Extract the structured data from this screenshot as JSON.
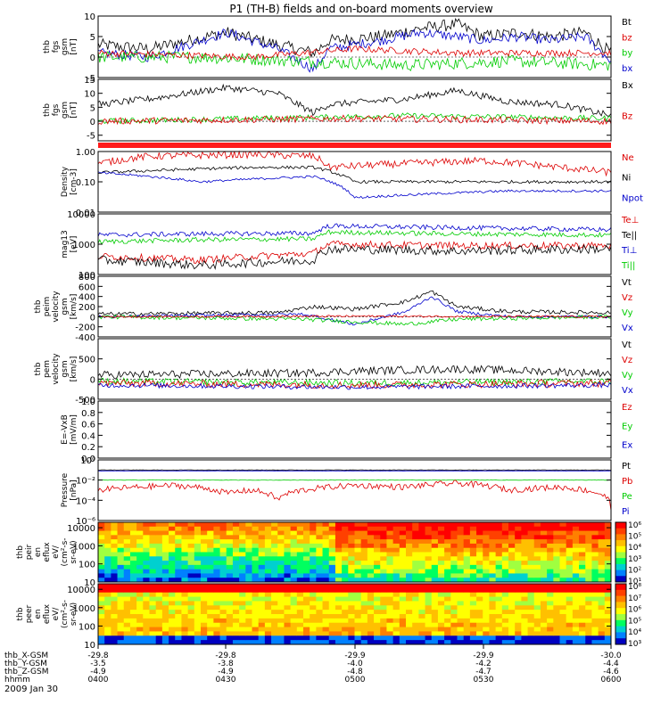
{
  "title": "P1 (TH-B) fields and on-board moments overview",
  "colors": {
    "black": "#000000",
    "red": "#dd0000",
    "green": "#00cc00",
    "blue": "#0000cc",
    "bar": "#ff1a1a"
  },
  "chart_data": [
    {
      "id": "fgs",
      "type": "line",
      "ylabel": [
        "thb",
        "fgs",
        "gsm",
        "[nT]"
      ],
      "ylim": [
        -5,
        10
      ],
      "yticks": [
        {
          "v": 10,
          "l": "10"
        },
        {
          "v": 5,
          "l": "5"
        },
        {
          "v": 0,
          "l": "0"
        },
        {
          "v": -5,
          "l": "-5"
        }
      ],
      "legend": [
        {
          "t": "Bt",
          "c": "black"
        },
        {
          "t": "bz",
          "c": "red"
        },
        {
          "t": "by",
          "c": "green"
        },
        {
          "t": "bx",
          "c": "blue"
        }
      ],
      "series": [
        {
          "c": "black",
          "x": [
            0,
            0.1,
            0.25,
            0.35,
            0.42,
            0.45,
            0.55,
            0.63,
            0.7,
            0.75,
            0.82,
            0.88,
            0.95,
            1.0
          ],
          "y": [
            3,
            2,
            6,
            3,
            1,
            4,
            5,
            7,
            8,
            5,
            6,
            5,
            6,
            1
          ],
          "noise": 1.5
        },
        {
          "c": "blue",
          "x": [
            0,
            0.1,
            0.25,
            0.35,
            0.42,
            0.45,
            0.55,
            0.63,
            0.7,
            0.75,
            0.82,
            0.88,
            0.95,
            1.0
          ],
          "y": [
            1,
            0,
            6,
            2,
            -3,
            2,
            4,
            6,
            5,
            4,
            5,
            4,
            5,
            -1
          ],
          "noise": 1.2
        },
        {
          "c": "green",
          "x": [
            0,
            0.2,
            0.4,
            0.6,
            0.8,
            1.0
          ],
          "y": [
            0,
            0,
            -1,
            -2,
            -1,
            -2
          ],
          "noise": 1.5
        },
        {
          "c": "red",
          "x": [
            0,
            0.3,
            0.5,
            0.7,
            1.0
          ],
          "y": [
            1,
            0,
            2,
            1,
            1
          ],
          "noise": 0.8
        }
      ]
    },
    {
      "id": "fgs_dsl",
      "type": "line",
      "ylabel": [
        "thb",
        "fgs",
        "gsm",
        "[nT]"
      ],
      "ylim": [
        -7,
        15
      ],
      "yticks": [
        {
          "v": 15,
          "l": "15"
        },
        {
          "v": 10,
          "l": "10"
        },
        {
          "v": 5,
          "l": "5"
        },
        {
          "v": 0,
          "l": "0"
        },
        {
          "v": -5,
          "l": "-5"
        }
      ],
      "legend": [
        {
          "t": "Bx",
          "c": "black"
        },
        {
          "t": "Bz",
          "c": "red"
        }
      ],
      "series": [
        {
          "c": "black",
          "x": [
            0,
            0.1,
            0.25,
            0.35,
            0.42,
            0.45,
            0.6,
            0.7,
            0.8,
            0.9,
            1.0
          ],
          "y": [
            6,
            8,
            12,
            10,
            3,
            6,
            8,
            11,
            7,
            6,
            2
          ],
          "noise": 1.2
        },
        {
          "c": "green",
          "x": [
            0,
            0.3,
            0.6,
            1.0
          ],
          "y": [
            0,
            1,
            2,
            1
          ],
          "noise": 1.0
        },
        {
          "c": "red",
          "x": [
            0,
            0.5,
            1.0
          ],
          "y": [
            0,
            1,
            0
          ],
          "noise": 1.2
        }
      ]
    },
    {
      "id": "density",
      "type": "line",
      "log": true,
      "ylabel": [
        "Density",
        "[cm-3]"
      ],
      "ylim": [
        0.01,
        1.0
      ],
      "yticks": [
        {
          "v": 1.0,
          "l": "1.00"
        },
        {
          "v": 0.1,
          "l": "0.10"
        },
        {
          "v": 0.01,
          "l": "0.01"
        }
      ],
      "legend": [
        {
          "t": "Ne",
          "c": "red"
        },
        {
          "t": "Ni",
          "c": "black"
        },
        {
          "t": "Npot",
          "c": "blue"
        }
      ],
      "series": [
        {
          "c": "red",
          "x": [
            0,
            0.1,
            0.3,
            0.42,
            0.45,
            0.6,
            0.75,
            0.9,
            1.0
          ],
          "y": [
            0.4,
            0.7,
            0.8,
            0.7,
            0.3,
            0.4,
            0.5,
            0.3,
            0.2
          ],
          "noise": 0.12
        },
        {
          "c": "black",
          "x": [
            0,
            0.3,
            0.42,
            0.5,
            0.8,
            1.0
          ],
          "y": [
            0.2,
            0.3,
            0.3,
            0.1,
            0.1,
            0.1
          ],
          "noise": 0.05
        },
        {
          "c": "blue",
          "x": [
            0,
            0.2,
            0.42,
            0.5,
            0.8,
            1.0
          ],
          "y": [
            0.2,
            0.1,
            0.15,
            0.03,
            0.05,
            0.05
          ],
          "noise": 0.04
        }
      ]
    },
    {
      "id": "temp",
      "type": "line",
      "log": true,
      "ylabel": [
        "mag13",
        "[eV]"
      ],
      "ylim": [
        100,
        10000
      ],
      "yticks": [
        {
          "v": 10000,
          "l": "10000"
        },
        {
          "v": 1000,
          "l": "1000"
        },
        {
          "v": 100,
          "l": "100"
        }
      ],
      "legend": [
        {
          "t": "Te⊥",
          "c": "red"
        },
        {
          "t": "Te||",
          "c": "black"
        },
        {
          "t": "Ti⊥",
          "c": "blue"
        },
        {
          "t": "Ti||",
          "c": "green"
        }
      ],
      "series": [
        {
          "c": "blue",
          "x": [
            0,
            0.2,
            0.42,
            0.45,
            0.7,
            1.0
          ],
          "y": [
            2000,
            2200,
            2300,
            4000,
            3500,
            3000
          ],
          "noise": 0.08
        },
        {
          "c": "green",
          "x": [
            0,
            0.2,
            0.42,
            0.45,
            0.7,
            1.0
          ],
          "y": [
            1200,
            1400,
            1500,
            2500,
            2200,
            2000
          ],
          "noise": 0.08
        },
        {
          "c": "red",
          "x": [
            0,
            0.2,
            0.42,
            0.45,
            0.7,
            1.0
          ],
          "y": [
            400,
            300,
            500,
            1000,
            900,
            900
          ],
          "noise": 0.12
        },
        {
          "c": "black",
          "x": [
            0,
            0.2,
            0.42,
            0.45,
            0.7,
            1.0
          ],
          "y": [
            300,
            200,
            300,
            700,
            600,
            700
          ],
          "noise": 0.15
        }
      ]
    },
    {
      "id": "velocity_esa",
      "type": "line",
      "ylabel": [
        "thb",
        "peim",
        "velocity",
        "gsm",
        "[km/s]"
      ],
      "ylim": [
        -400,
        800
      ],
      "yticks": [
        {
          "v": 800,
          "l": "800"
        },
        {
          "v": 600,
          "l": "600"
        },
        {
          "v": 400,
          "l": "400"
        },
        {
          "v": 200,
          "l": "200"
        },
        {
          "v": 0,
          "l": "0"
        },
        {
          "v": -200,
          "l": "-200"
        },
        {
          "v": -400,
          "l": "-400"
        }
      ],
      "legend": [
        {
          "t": "Vt",
          "c": "black"
        },
        {
          "t": "Vz",
          "c": "red"
        },
        {
          "t": "Vy",
          "c": "green"
        },
        {
          "t": "Vx",
          "c": "blue"
        }
      ],
      "series": [
        {
          "c": "black",
          "x": [
            0,
            0.35,
            0.42,
            0.5,
            0.6,
            0.65,
            0.7,
            0.8,
            1.0
          ],
          "y": [
            50,
            80,
            200,
            150,
            300,
            500,
            200,
            100,
            80
          ],
          "noise": 40
        },
        {
          "c": "blue",
          "x": [
            0,
            0.4,
            0.5,
            0.6,
            0.65,
            0.7,
            0.8,
            1.0
          ],
          "y": [
            0,
            50,
            -150,
            100,
            400,
            100,
            0,
            0
          ],
          "noise": 30
        },
        {
          "c": "green",
          "x": [
            0,
            0.4,
            0.5,
            0.6,
            0.7,
            1.0
          ],
          "y": [
            0,
            -50,
            -100,
            -150,
            -50,
            0
          ],
          "noise": 40
        },
        {
          "c": "red",
          "x": [
            0,
            0.5,
            1.0
          ],
          "y": [
            0,
            10,
            0
          ],
          "noise": 20
        }
      ]
    },
    {
      "id": "velocity_sst",
      "type": "line",
      "ylabel": [
        "thb",
        "pem",
        "velocity",
        "gsm",
        "[km/s]"
      ],
      "ylim": [
        -500,
        1000
      ],
      "yticks": [
        {
          "v": 500,
          "l": "500"
        },
        {
          "v": 0,
          "l": "0"
        },
        {
          "v": -500,
          "l": "-500"
        }
      ],
      "legend": [
        {
          "t": "Vt",
          "c": "black"
        },
        {
          "t": "Vz",
          "c": "red"
        },
        {
          "t": "Vy",
          "c": "green"
        },
        {
          "t": "Vx",
          "c": "blue"
        }
      ],
      "series": [
        {
          "c": "black",
          "x": [
            0,
            0.4,
            0.5,
            0.7,
            1.0
          ],
          "y": [
            100,
            150,
            200,
            250,
            150
          ],
          "noise": 100
        },
        {
          "c": "green",
          "x": [
            0,
            0.5,
            1.0
          ],
          "y": [
            -50,
            -100,
            -50
          ],
          "noise": 80
        },
        {
          "c": "red",
          "x": [
            0,
            0.5,
            1.0
          ],
          "y": [
            -100,
            -150,
            -100
          ],
          "noise": 90
        },
        {
          "c": "blue",
          "x": [
            0,
            0.5,
            1.0
          ],
          "y": [
            -150,
            -200,
            -150
          ],
          "noise": 60
        }
      ]
    },
    {
      "id": "efield",
      "type": "line",
      "ylabel": [
        "E=-VxB",
        "[mV/m]"
      ],
      "ylim": [
        0,
        1.0
      ],
      "yticks": [
        {
          "v": 1.0,
          "l": "1.0"
        },
        {
          "v": 0.8,
          "l": "0.8"
        },
        {
          "v": 0.6,
          "l": "0.6"
        },
        {
          "v": 0.4,
          "l": "0.4"
        },
        {
          "v": 0.2,
          "l": "0.2"
        },
        {
          "v": 0,
          "l": "0.0"
        }
      ],
      "legend": [
        {
          "t": "Ez",
          "c": "red"
        },
        {
          "t": "Ey",
          "c": "green"
        },
        {
          "t": "Ex",
          "c": "blue"
        }
      ],
      "series": []
    },
    {
      "id": "pressure",
      "type": "line",
      "log": true,
      "ylabel": [
        "Pressure",
        "[nPa]"
      ],
      "ylim": [
        1e-06,
        1
      ],
      "yticks": [
        {
          "v": 1,
          "l": "10⁰"
        },
        {
          "v": 0.01,
          "l": "10⁻²"
        },
        {
          "v": 0.0001,
          "l": "10⁻⁴"
        },
        {
          "v": 1e-06,
          "l": "10⁻⁶"
        }
      ],
      "legend": [
        {
          "t": "Pt",
          "c": "black"
        },
        {
          "t": "Pb",
          "c": "red"
        },
        {
          "t": "Pe",
          "c": "green"
        },
        {
          "t": "Pi",
          "c": "blue"
        }
      ],
      "series": [
        {
          "c": "black",
          "x": [
            0,
            1.0
          ],
          "y": [
            0.1,
            0.1
          ],
          "noise": 0.02
        },
        {
          "c": "blue",
          "x": [
            0,
            1.0
          ],
          "y": [
            0.08,
            0.08
          ],
          "noise": 0.02
        },
        {
          "c": "green",
          "x": [
            0,
            1.0
          ],
          "y": [
            0.01,
            0.01
          ],
          "noise": 0.02
        },
        {
          "c": "red",
          "x": [
            0,
            0.15,
            0.25,
            0.3,
            0.35,
            0.4,
            0.5,
            0.6,
            0.7,
            0.8,
            0.9,
            0.95,
            1.0
          ],
          "y": [
            0.001,
            0.003,
            0.0005,
            0.001,
            0.0001,
            0.001,
            0.003,
            0.002,
            0.005,
            0.001,
            0.002,
            0.001,
            1e-05
          ],
          "noise": 0.3
        }
      ]
    },
    {
      "id": "ion_spec",
      "type": "heatmap",
      "ylabel": [
        "thb",
        "peir",
        "en",
        "eflux",
        "eV/",
        "(cm²-s-",
        "sr-eV)"
      ],
      "yticks": [
        {
          "v": 10000,
          "l": "10000"
        },
        {
          "v": 1000,
          "l": "1000"
        },
        {
          "v": 100,
          "l": "100"
        },
        {
          "v": 10,
          "l": "10"
        }
      ],
      "colorbar": [
        "10⁶",
        "10⁵",
        "10⁴",
        "10³",
        "10²",
        "10¹"
      ]
    },
    {
      "id": "elec_spec",
      "type": "heatmap",
      "ylabel": [
        "thb",
        "peer",
        "en",
        "eflux",
        "eV/",
        "(cm²-s-",
        "sr-eV)"
      ],
      "yticks": [
        {
          "v": 10000,
          "l": "10000"
        },
        {
          "v": 1000,
          "l": "1000"
        },
        {
          "v": 100,
          "l": "100"
        },
        {
          "v": 10,
          "l": "10"
        }
      ],
      "colorbar": [
        "10⁸",
        "10⁷",
        "10⁶",
        "10⁵",
        "10⁴",
        "10³"
      ]
    }
  ],
  "xaxis": {
    "rows": [
      {
        "label": "thb_X-GSM",
        "values": [
          "-29.8",
          "-29.8",
          "-29.9",
          "-29.9",
          "-30.0"
        ]
      },
      {
        "label": "thb_Y-GSM",
        "values": [
          "-3.5",
          "-3.8",
          "-4.0",
          "-4.2",
          "-4.4"
        ]
      },
      {
        "label": "thb_Z-GSM",
        "values": [
          "-4.9",
          "-4.9",
          "-4.8",
          "-4.7",
          "-4.6"
        ]
      },
      {
        "label": "hhmm",
        "values": [
          "0400",
          "0430",
          "0500",
          "0530",
          "0600"
        ]
      }
    ],
    "date": "2009 Jan 30"
  }
}
